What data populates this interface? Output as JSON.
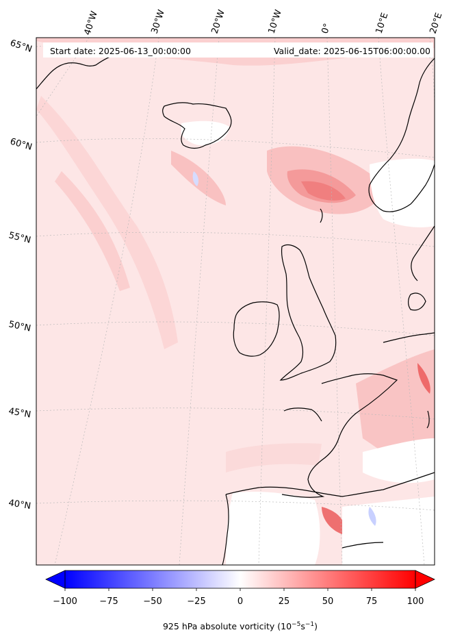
{
  "header": {
    "start_date": "Start date: 2025-06-13_00:00:00",
    "valid_date": "Valid_date: 2025-06-15T06:00:00.00"
  },
  "axes": {
    "lon_labels": [
      "40°W",
      "30°W",
      "20°W",
      "10°W",
      "0°",
      "10°E",
      "20°E"
    ],
    "lat_labels": [
      "65°N",
      "60°N",
      "55°N",
      "50°N",
      "45°N",
      "40°N"
    ]
  },
  "colorbar": {
    "ticks": [
      "−100",
      "−75",
      "−50",
      "−25",
      "0",
      "25",
      "50",
      "75",
      "100"
    ],
    "label_prefix": "925 hPa absolute vorticity (10",
    "label_exp1": "−5",
    "label_mid": "s",
    "label_exp2": "−1",
    "label_suffix": ")",
    "range": [
      -100,
      100
    ],
    "min_color": "#0000ff",
    "mid_color": "#ffffff",
    "max_color": "#ff0000"
  },
  "colors": {
    "background_field": "#fde6e6",
    "coastline": "#000000",
    "gridline": "#b8b8b8"
  }
}
